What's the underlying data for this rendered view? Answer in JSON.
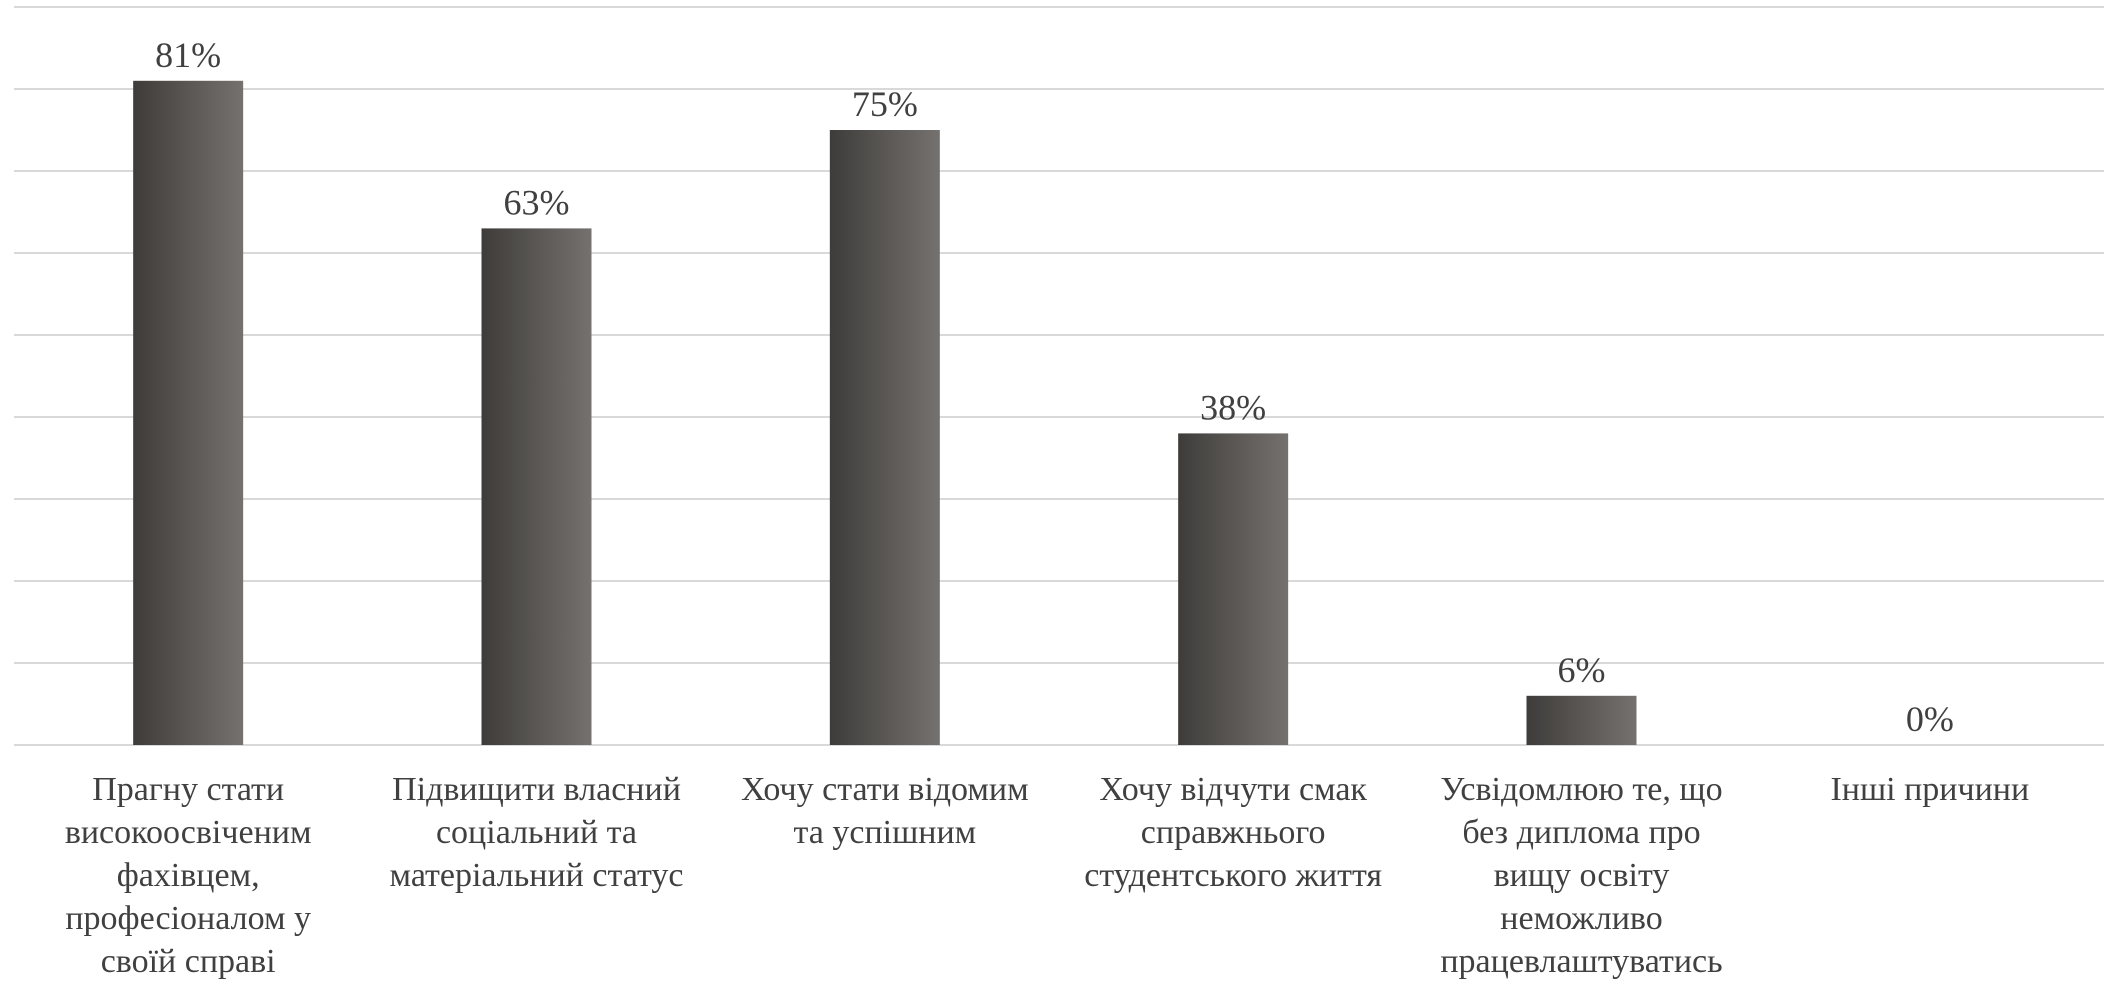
{
  "chart_data": {
    "type": "bar",
    "categories": [
      "Прагну стати високоосвіченим фахівцем, професіоналом у своїй справі",
      "Підвищити власний соціальний та матеріальний статус",
      "Хочу стати відомим та успішним",
      "Хочу відчути смак справжнього студентського життя",
      "Усвідомлюю те, що без диплома про вищу освіту неможливо працевлаштуватись",
      "Інші причини"
    ],
    "values": [
      81,
      63,
      75,
      38,
      6,
      0
    ],
    "data_labels": [
      "81%",
      "63%",
      "75%",
      "38%",
      "6%",
      "0%"
    ],
    "title": "",
    "xlabel": "",
    "ylabel": "",
    "ylim": [
      0,
      90
    ],
    "grid": true,
    "legend": "none",
    "bar_gradient": [
      "#3e3c3a",
      "#75716e"
    ],
    "grid_color": "#d9d9d9",
    "label_color": "#404040"
  }
}
